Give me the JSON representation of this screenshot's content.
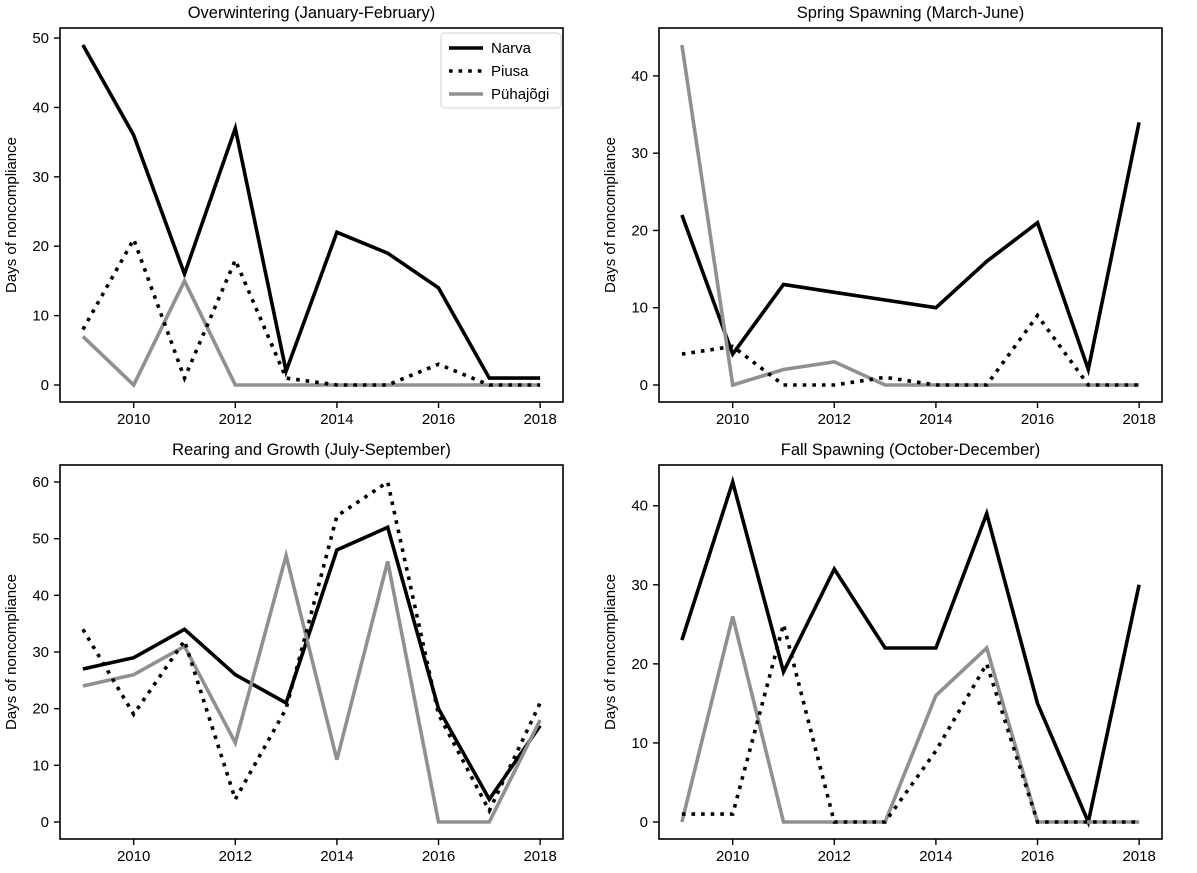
{
  "figure": {
    "background": "#ffffff",
    "ylabel": "Days of noncompliance",
    "series_colors": {
      "narva": "#000000",
      "piusa": "#000000",
      "puhajogi": "#909090"
    },
    "legend": {
      "position": "upper right",
      "entries": [
        "Narva",
        "Piusa",
        "Pühajõgi"
      ]
    }
  },
  "chart_data": [
    {
      "type": "line",
      "title": "Overwintering (January-February)",
      "xlabel": "",
      "ylabel": "Days of noncompliance",
      "x": [
        2009,
        2010,
        2011,
        2012,
        2013,
        2014,
        2015,
        2016,
        2017,
        2018
      ],
      "xticks": [
        2010,
        2012,
        2014,
        2016,
        2018
      ],
      "yticks": [
        0,
        10,
        20,
        30,
        40,
        50
      ],
      "xlim": [
        2008.55,
        2018.45
      ],
      "ylim": [
        -2.45,
        51.45
      ],
      "grid": false,
      "legend": true,
      "legend_position": "upper right",
      "series": [
        {
          "name": "Narva",
          "color": "#000000",
          "linestyle": "solid",
          "values": [
            49,
            36,
            16,
            37,
            2,
            22,
            19,
            14,
            1,
            1
          ]
        },
        {
          "name": "Piusa",
          "color": "#000000",
          "linestyle": "dotted",
          "values": [
            8,
            21,
            1,
            18,
            1,
            0,
            0,
            3,
            0,
            0
          ]
        },
        {
          "name": "Pühajõgi",
          "color": "#909090",
          "linestyle": "solid",
          "values": [
            7,
            0,
            15,
            0,
            0,
            0,
            0,
            0,
            0,
            0
          ]
        }
      ]
    },
    {
      "type": "line",
      "title": "Spring Spawning (March-June)",
      "xlabel": "",
      "ylabel": "Days of noncompliance",
      "x": [
        2009,
        2010,
        2011,
        2012,
        2013,
        2014,
        2015,
        2016,
        2017,
        2018
      ],
      "xticks": [
        2010,
        2012,
        2014,
        2016,
        2018
      ],
      "yticks": [
        0,
        10,
        20,
        30,
        40
      ],
      "xlim": [
        2008.55,
        2018.45
      ],
      "ylim": [
        -2.2,
        46.2
      ],
      "grid": false,
      "legend": false,
      "series": [
        {
          "name": "Narva",
          "color": "#000000",
          "linestyle": "solid",
          "values": [
            22,
            4,
            13,
            12,
            11,
            10,
            16,
            21,
            2,
            34
          ]
        },
        {
          "name": "Piusa",
          "color": "#000000",
          "linestyle": "dotted",
          "values": [
            4,
            5,
            0,
            0,
            1,
            0,
            0,
            9,
            0,
            0
          ]
        },
        {
          "name": "Pühajõgi",
          "color": "#909090",
          "linestyle": "solid",
          "values": [
            44,
            0,
            2,
            3,
            0,
            0,
            0,
            0,
            0,
            0
          ]
        }
      ]
    },
    {
      "type": "line",
      "title": "Rearing and Growth (July-September)",
      "xlabel": "",
      "ylabel": "Days of noncompliance",
      "x": [
        2009,
        2010,
        2011,
        2012,
        2013,
        2014,
        2015,
        2016,
        2017,
        2018
      ],
      "xticks": [
        2010,
        2012,
        2014,
        2016,
        2018
      ],
      "yticks": [
        0,
        10,
        20,
        30,
        40,
        50,
        60
      ],
      "xlim": [
        2008.55,
        2018.45
      ],
      "ylim": [
        -3,
        63
      ],
      "grid": false,
      "legend": false,
      "series": [
        {
          "name": "Narva",
          "color": "#000000",
          "linestyle": "solid",
          "values": [
            27,
            29,
            34,
            26,
            21,
            48,
            52,
            20,
            4,
            17
          ]
        },
        {
          "name": "Piusa",
          "color": "#000000",
          "linestyle": "dotted",
          "values": [
            34,
            19,
            32,
            4,
            20,
            54,
            60,
            19,
            2,
            21
          ]
        },
        {
          "name": "Pühajõgi",
          "color": "#909090",
          "linestyle": "solid",
          "values": [
            24,
            26,
            31,
            14,
            47,
            11,
            46,
            0,
            0,
            18
          ]
        }
      ]
    },
    {
      "type": "line",
      "title": "Fall Spawning (October-December)",
      "xlabel": "",
      "ylabel": "Days of noncompliance",
      "x": [
        2009,
        2010,
        2011,
        2012,
        2013,
        2014,
        2015,
        2016,
        2017,
        2018
      ],
      "xticks": [
        2010,
        2012,
        2014,
        2016,
        2018
      ],
      "yticks": [
        0,
        10,
        20,
        30,
        40
      ],
      "xlim": [
        2008.55,
        2018.45
      ],
      "ylim": [
        -2.15,
        45.15
      ],
      "grid": false,
      "legend": false,
      "series": [
        {
          "name": "Narva",
          "color": "#000000",
          "linestyle": "solid",
          "values": [
            23,
            43,
            19,
            32,
            22,
            22,
            39,
            15,
            0,
            30
          ]
        },
        {
          "name": "Piusa",
          "color": "#000000",
          "linestyle": "dotted",
          "values": [
            1,
            1,
            25,
            0,
            0,
            9,
            20,
            0,
            0,
            0
          ]
        },
        {
          "name": "Pühajõgi",
          "color": "#909090",
          "linestyle": "solid",
          "values": [
            0,
            26,
            0,
            0,
            0,
            16,
            22,
            0,
            0,
            0
          ]
        }
      ]
    }
  ]
}
